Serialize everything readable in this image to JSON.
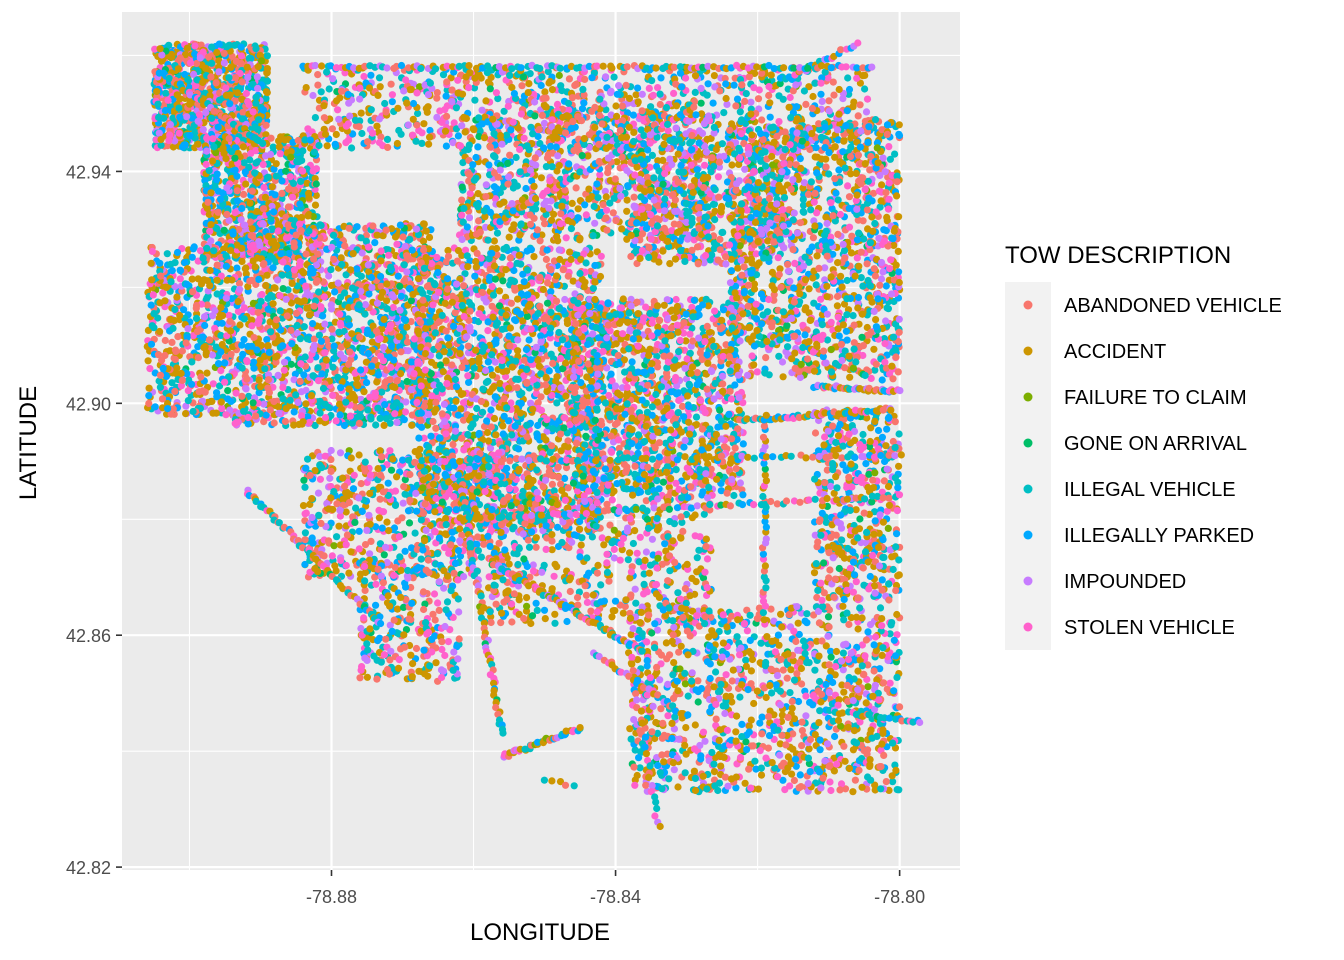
{
  "chart_data": {
    "type": "scatter",
    "title": "",
    "xlabel": "LONGITUDE",
    "ylabel": "LATITUDE",
    "xlim": [
      -78.9095,
      -78.7915
    ],
    "ylim": [
      42.8195,
      42.9675
    ],
    "x_ticks": [
      -78.88,
      -78.84,
      -78.8
    ],
    "x_tick_labels": [
      "-78.88",
      "-78.84",
      "-78.80"
    ],
    "x_minor_ticks": [
      -78.9,
      -78.86,
      -78.82
    ],
    "y_ticks": [
      42.82,
      42.86,
      42.9,
      42.94
    ],
    "y_tick_labels": [
      "42.82",
      "42.86",
      "42.90",
      "42.94"
    ],
    "y_minor_ticks": [
      42.84,
      42.88,
      42.92,
      42.96
    ],
    "grid": true,
    "panel_background": "#ebebeb",
    "legend": {
      "title": "TOW DESCRIPTION",
      "position": "right",
      "entries": [
        {
          "label": "ABANDONED VEHICLE",
          "color": "#F8766D"
        },
        {
          "label": "ACCIDENT",
          "color": "#CD9600"
        },
        {
          "label": "FAILURE TO CLAIM",
          "color": "#7CAE00"
        },
        {
          "label": "GONE ON ARRIVAL",
          "color": "#00BE67"
        },
        {
          "label": "ILLEGAL VEHICLE",
          "color": "#00BFC4"
        },
        {
          "label": "ILLEGALLY PARKED",
          "color": "#00A9FF"
        },
        {
          "label": "IMPOUNDED",
          "color": "#C77CFF"
        },
        {
          "label": "STOLEN VEHICLE",
          "color": "#FF61CC"
        }
      ]
    },
    "series": [
      {
        "name": "ABANDONED VEHICLE",
        "color": "#F8766D",
        "weight": 0.18
      },
      {
        "name": "ACCIDENT",
        "color": "#CD9600",
        "weight": 0.24
      },
      {
        "name": "FAILURE TO CLAIM",
        "color": "#7CAE00",
        "weight": 0.01
      },
      {
        "name": "GONE ON ARRIVAL",
        "color": "#00BE67",
        "weight": 0.02
      },
      {
        "name": "ILLEGAL VEHICLE",
        "color": "#00BFC4",
        "weight": 0.19
      },
      {
        "name": "ILLEGALLY PARKED",
        "color": "#00A9FF",
        "weight": 0.14
      },
      {
        "name": "IMPOUNDED",
        "color": "#C77CFF",
        "weight": 0.1
      },
      {
        "name": "STOLEN VEHICLE",
        "color": "#FF61CC",
        "weight": 0.12
      }
    ],
    "regions": [
      {
        "x": [
          -78.905,
          -78.889
        ],
        "y": [
          42.944,
          42.962
        ],
        "n": 900
      },
      {
        "x": [
          -78.898,
          -78.882
        ],
        "y": [
          42.925,
          42.946
        ],
        "n": 700
      },
      {
        "x": [
          -78.894,
          -78.866
        ],
        "y": [
          42.896,
          42.931
        ],
        "n": 1600
      },
      {
        "x": [
          -78.868,
          -78.842
        ],
        "y": [
          42.878,
          42.927
        ],
        "n": 1800
      },
      {
        "x": [
          -78.846,
          -78.822
        ],
        "y": [
          42.884,
          42.918
        ],
        "n": 1200
      },
      {
        "x": [
          -78.824,
          -78.8
        ],
        "y": [
          42.904,
          42.949
        ],
        "n": 1300
      },
      {
        "x": [
          -78.884,
          -78.804
        ],
        "y": [
          42.944,
          42.958
        ],
        "n": 900
      },
      {
        "x": [
          -78.862,
          -78.826
        ],
        "y": [
          42.928,
          42.95
        ],
        "n": 800
      },
      {
        "x": [
          -78.838,
          -78.816
        ],
        "y": [
          42.924,
          42.944
        ],
        "n": 500
      },
      {
        "x": [
          -78.884,
          -78.856
        ],
        "y": [
          42.87,
          42.892
        ],
        "n": 600
      },
      {
        "x": [
          -78.858,
          -78.826
        ],
        "y": [
          42.862,
          42.884
        ],
        "n": 500
      },
      {
        "x": [
          -78.838,
          -78.8
        ],
        "y": [
          42.833,
          42.865
        ],
        "n": 1100
      },
      {
        "x": [
          -78.812,
          -78.8
        ],
        "y": [
          42.866,
          42.899
        ],
        "n": 450
      },
      {
        "x": [
          -78.906,
          -78.894
        ],
        "y": [
          42.898,
          42.927
        ],
        "n": 450
      },
      {
        "x": [
          -78.876,
          -78.862
        ],
        "y": [
          42.852,
          42.872
        ],
        "n": 250
      }
    ],
    "linear_features": [
      {
        "from": [
          -78.904,
          42.957
        ],
        "to": [
          -78.89,
          42.945
        ],
        "n": 40
      },
      {
        "from": [
          -78.892,
          42.885
        ],
        "to": [
          -78.873,
          42.862
        ],
        "n": 60
      },
      {
        "from": [
          -78.862,
          42.888
        ],
        "to": [
          -78.856,
          42.843
        ],
        "n": 70
      },
      {
        "from": [
          -78.856,
          42.839
        ],
        "to": [
          -78.845,
          42.844
        ],
        "n": 40
      },
      {
        "from": [
          -78.85,
          42.835
        ],
        "to": [
          -78.846,
          42.834
        ],
        "n": 5
      },
      {
        "from": [
          -78.858,
          42.873
        ],
        "to": [
          -78.836,
          42.857
        ],
        "n": 80
      },
      {
        "from": [
          -78.838,
          42.857
        ],
        "to": [
          -78.834,
          42.827
        ],
        "n": 30
      },
      {
        "from": [
          -78.86,
          42.929
        ],
        "to": [
          -78.829,
          42.951
        ],
        "n": 60
      },
      {
        "from": [
          -78.812,
          42.903
        ],
        "to": [
          -78.8,
          42.902
        ],
        "n": 40
      },
      {
        "from": [
          -78.822,
          42.897
        ],
        "to": [
          -78.801,
          42.899
        ],
        "n": 60
      },
      {
        "from": [
          -78.81,
          42.847
        ],
        "to": [
          -78.797,
          42.845
        ],
        "n": 25
      },
      {
        "from": [
          -78.819,
          42.862
        ],
        "to": [
          -78.819,
          42.898
        ],
        "n": 40
      },
      {
        "from": [
          -78.816,
          42.956
        ],
        "to": [
          -78.806,
          42.962
        ],
        "n": 20
      },
      {
        "from": [
          -78.884,
          42.958
        ],
        "to": [
          -78.804,
          42.958
        ],
        "n": 120
      },
      {
        "from": [
          -78.843,
          42.857
        ],
        "to": [
          -78.83,
          42.846
        ],
        "n": 30
      },
      {
        "from": [
          -78.862,
          42.88
        ],
        "to": [
          -78.8,
          42.884
        ],
        "n": 80
      },
      {
        "from": [
          -78.87,
          42.89
        ],
        "to": [
          -78.8,
          42.891
        ],
        "n": 80
      }
    ]
  }
}
